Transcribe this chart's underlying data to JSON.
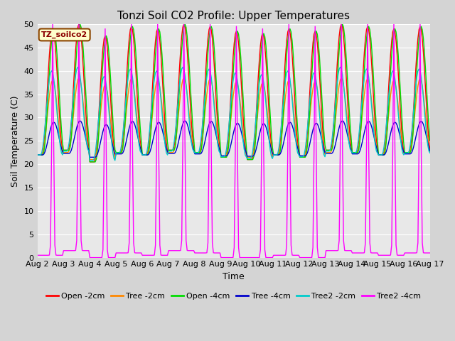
{
  "title": "Tonzi Soil CO2 Profile: Upper Temperatures",
  "xlabel": "Time",
  "ylabel": "Soil Temperature (C)",
  "ylim": [
    0,
    50
  ],
  "yticks": [
    0,
    5,
    10,
    15,
    20,
    25,
    30,
    35,
    40,
    45,
    50
  ],
  "xtick_labels": [
    "Aug 2",
    "Aug 3",
    "Aug 4",
    "Aug 5",
    "Aug 6",
    "Aug 7",
    "Aug 8",
    "Aug 9",
    "Aug 10",
    "Aug 11",
    "Aug 12",
    "Aug 13",
    "Aug 14",
    "Aug 15",
    "Aug 16",
    "Aug 17"
  ],
  "colors": {
    "Open -2cm": "#ff0000",
    "Tree -2cm": "#ff8800",
    "Open -4cm": "#00dd00",
    "Tree -4cm": "#0000cc",
    "Tree2 -2cm": "#00cccc",
    "Tree2 -4cm": "#ff00ff"
  },
  "annotation_text": "TZ_soilco2",
  "fig_bg": "#d4d4d4",
  "plot_bg": "#e8e8e8",
  "title_fontsize": 11,
  "axis_fontsize": 9,
  "tick_fontsize": 8,
  "legend_fontsize": 8
}
